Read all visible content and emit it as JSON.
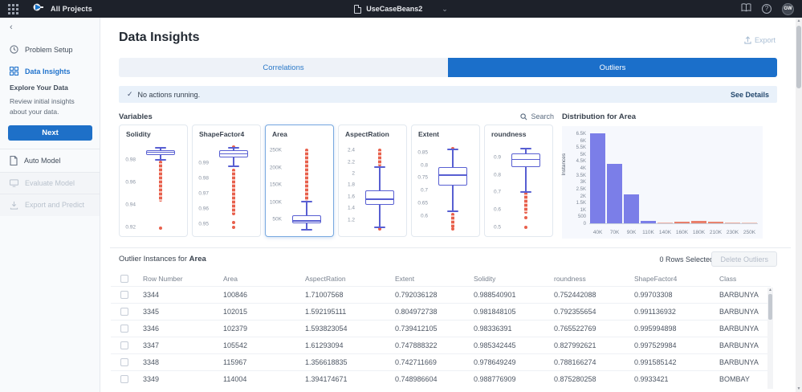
{
  "colors": {
    "accent_blue": "#1b6fca",
    "box_stroke": "#585fd2",
    "outlier_red": "#e8604c",
    "hist_blue": "#7b7ee8",
    "hist_red": "#e87f6b",
    "topbar_bg": "#1d212a",
    "banner_bg": "#e9f1fa"
  },
  "icons": {
    "check": "✓",
    "chevron_down": "⌄",
    "collapse": "‹",
    "up_arrow": "▲",
    "down_arrow": "▼"
  },
  "topbar": {
    "all_projects": "All Projects",
    "project": "UseCaseBeans2",
    "avatar": "GW"
  },
  "sidebar": {
    "items": [
      {
        "label": "Problem Setup",
        "icon": "clock"
      },
      {
        "label": "Data Insights",
        "icon": "insights"
      }
    ],
    "section_label": "Explore Your Data",
    "description": "Review initial insights about your data.",
    "next_label": "Next",
    "actions": [
      {
        "label": "Auto Model",
        "icon": "file",
        "disabled": false
      },
      {
        "label": "Evaluate Model",
        "icon": "monitor",
        "disabled": true
      },
      {
        "label": "Export and Predict",
        "icon": "download",
        "disabled": true
      }
    ]
  },
  "header": {
    "title": "Data Insights",
    "export_label": "Export"
  },
  "tabs": [
    {
      "label": "Correlations",
      "active": false
    },
    {
      "label": "Outliers",
      "active": true
    }
  ],
  "banner": {
    "message": "No actions running.",
    "action": "See Details"
  },
  "variables_section": {
    "title": "Variables",
    "search_label": "Search"
  },
  "distribution": {
    "title": "Distribution for Area"
  },
  "chart_data": [
    {
      "type": "boxplot",
      "name": "Solidity",
      "selected": false,
      "domain": [
        0.918,
        0.992
      ],
      "ticks": [
        0.98,
        0.96,
        0.94,
        0.92
      ],
      "tick_labels": [
        "0.98",
        "0.96",
        "0.94",
        "0.92"
      ],
      "box": {
        "q1": 0.9845,
        "q3": 0.9885,
        "median": 0.9865,
        "whisker_low": 0.98,
        "whisker_high": 0.9905
      },
      "outlier_range": [
        0.943,
        0.979
      ],
      "extra_outliers": [
        0.9195
      ]
    },
    {
      "type": "boxplot",
      "name": "ShapeFactor4",
      "selected": false,
      "domain": [
        0.9465,
        1.001
      ],
      "ticks": [
        0.99,
        0.98,
        0.97,
        0.96,
        0.95
      ],
      "tick_labels": [
        "0.99",
        "0.98",
        "0.97",
        "0.96",
        "0.95"
      ],
      "box": {
        "q1": 0.9935,
        "q3": 0.9985,
        "median": 0.996,
        "whisker_low": 0.988,
        "whisker_high": 1.0
      },
      "outlier_range": [
        0.956,
        0.9865
      ],
      "extra_outliers": [
        1.0005,
        0.951,
        0.948
      ]
    },
    {
      "type": "boxplot",
      "name": "Area",
      "selected": true,
      "domain": [
        20000,
        262000
      ],
      "ticks": [
        250000,
        200000,
        150000,
        100000,
        50000
      ],
      "tick_labels": [
        "250K",
        "200K",
        "150K",
        "100K",
        "50K"
      ],
      "box": {
        "q1": 38000,
        "q3": 61000,
        "median": 46000,
        "whisker_low": 21000,
        "whisker_high": 101000
      },
      "outlier_range": [
        104000,
        256000
      ],
      "extra_outliers": []
    },
    {
      "type": "boxplot",
      "name": "AspectRation",
      "selected": false,
      "domain": [
        1.03,
        2.47
      ],
      "ticks": [
        2.4,
        2.2,
        2.0,
        1.8,
        1.6,
        1.4,
        1.2
      ],
      "tick_labels": [
        "2.4",
        "2.2",
        "2",
        "1.8",
        "1.6",
        "1.4",
        "1.2"
      ],
      "box": {
        "q1": 1.455,
        "q3": 1.705,
        "median": 1.555,
        "whisker_low": 1.065,
        "whisker_high": 2.115
      },
      "outlier_range": [
        2.12,
        2.435
      ],
      "extra_outliers": [
        1.05
      ]
    },
    {
      "type": "boxplot",
      "name": "Extent",
      "selected": false,
      "domain": [
        0.545,
        0.875
      ],
      "ticks": [
        0.85,
        0.8,
        0.75,
        0.7,
        0.65,
        0.6
      ],
      "tick_labels": [
        "0.85",
        "0.8",
        "0.75",
        "0.7",
        "0.65",
        "0.6"
      ],
      "box": {
        "q1": 0.718,
        "q3": 0.792,
        "median": 0.76,
        "whisker_low": 0.618,
        "whisker_high": 0.862
      },
      "outlier_range": [
        0.552,
        0.612
      ],
      "extra_outliers": [
        0.866,
        0.547
      ]
    },
    {
      "type": "boxplot",
      "name": "roundness",
      "selected": false,
      "domain": [
        0.485,
        0.965
      ],
      "ticks": [
        0.9,
        0.8,
        0.7,
        0.6,
        0.5
      ],
      "tick_labels": [
        "0.9",
        "0.8",
        "0.7",
        "0.6",
        "0.5"
      ],
      "box": {
        "q1": 0.845,
        "q3": 0.922,
        "median": 0.888,
        "whisker_low": 0.703,
        "whisker_high": 0.952
      },
      "outlier_range": [
        0.575,
        0.7
      ],
      "extra_outliers": [
        0.555,
        0.498
      ]
    },
    {
      "type": "bar",
      "title": "Distribution for Area",
      "ylabel": "Instances",
      "xlabel": "",
      "categories": [
        "40K",
        "70K",
        "90K",
        "110K",
        "140K",
        "160K",
        "180K",
        "210K",
        "230K",
        "250K"
      ],
      "values": [
        6500,
        4300,
        2100,
        150,
        30,
        130,
        190,
        100,
        40,
        15
      ],
      "bar_colors": [
        "#7b7ee8",
        "#7b7ee8",
        "#7b7ee8",
        "#7b7ee8",
        "#f0b1a5",
        "#e87f6b",
        "#e87f6b",
        "#e8846f",
        "#efae9f",
        "#f3c4b8"
      ],
      "ylim": [
        0,
        6500
      ],
      "ytick_labels": [
        "0",
        "500",
        "1K",
        "1.5K",
        "2K",
        "2.5K",
        "3K",
        "3.5K",
        "4K",
        "4.5K",
        "5K",
        "5.5K",
        "6K",
        "6.5K"
      ],
      "ytick_values": [
        0,
        500,
        1000,
        1500,
        2000,
        2500,
        3000,
        3500,
        4000,
        4500,
        5000,
        5500,
        6000,
        6500
      ],
      "legend": null,
      "grid": false
    }
  ],
  "outlier_table": {
    "title_prefix": "Outlier Instances for",
    "title_target": "Area",
    "rows_selected": "0 Rows Selected",
    "delete_label": "Delete Outliers",
    "columns": [
      "Row Number",
      "Area",
      "AspectRation",
      "Extent",
      "Solidity",
      "roundness",
      "ShapeFactor4",
      "Class"
    ],
    "rows": [
      [
        "3344",
        "100846",
        "1.71007568",
        "0.792036128",
        "0.988540901",
        "0.752442088",
        "0.99703308",
        "BARBUNYA"
      ],
      [
        "3345",
        "102015",
        "1.592195111",
        "0.804972738",
        "0.981848105",
        "0.792355654",
        "0.991136932",
        "BARBUNYA"
      ],
      [
        "3346",
        "102379",
        "1.593823054",
        "0.739412105",
        "0.98336391",
        "0.765522769",
        "0.995994898",
        "BARBUNYA"
      ],
      [
        "3347",
        "105542",
        "1.61293094",
        "0.747888322",
        "0.985342445",
        "0.827992621",
        "0.997529984",
        "BARBUNYA"
      ],
      [
        "3348",
        "115967",
        "1.356618835",
        "0.742711669",
        "0.978649249",
        "0.788166274",
        "0.991585142",
        "BARBUNYA"
      ],
      [
        "3349",
        "114004",
        "1.394174671",
        "0.748986604",
        "0.988776909",
        "0.875280258",
        "0.9933421",
        "BOMBAY"
      ]
    ]
  }
}
